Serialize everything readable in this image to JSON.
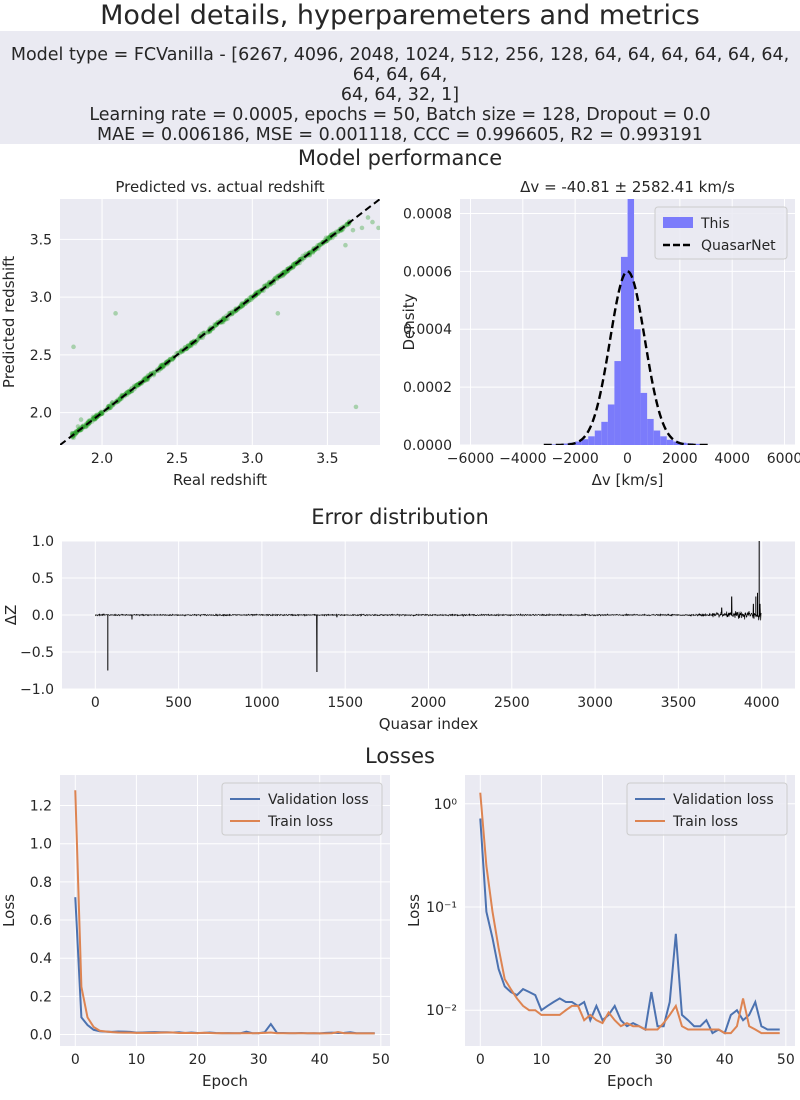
{
  "title": "Model details, hyperparemeters and metrics",
  "info": {
    "line1": "Model type = FCVanilla - [6267, 4096, 2048, 1024, 512, 256, 128, 64, 64, 64, 64, 64, 64, 64, 64, 64,",
    "line2": "64, 64, 32, 1]",
    "line3": "Learning rate = 0.0005, epochs = 50, Batch size = 128, Dropout = 0.0",
    "line4": "MAE = 0.006186, MSE = 0.001118, CCC = 0.996605, R2 = 0.993191"
  },
  "sections": {
    "performance": "Model performance",
    "error": "Error distribution",
    "losses": "Losses"
  },
  "colors": {
    "axes_bg": "#eaeaf2",
    "grid": "#ffffff",
    "scatter": "#2ca02c",
    "hist": "#7b7bfb",
    "validation": "#4c72b0",
    "train": "#dd8452"
  },
  "chart_data": [
    {
      "id": "pred_vs_actual",
      "type": "scatter",
      "title": "Predicted vs. actual redshift",
      "xlabel": "Real redshift",
      "ylabel": "Predicted redshift",
      "xlim": [
        1.72,
        3.85
      ],
      "ylim": [
        1.72,
        3.85
      ],
      "xticks": [
        2.0,
        2.5,
        3.0,
        3.5
      ],
      "yticks": [
        2.0,
        2.5,
        3.0,
        3.5
      ],
      "tick_labels_x": [
        "2.0",
        "2.5",
        "3.0",
        "3.5"
      ],
      "tick_labels_y": [
        "2.0",
        "2.5",
        "3.0",
        "3.5"
      ],
      "reference_line": "y = x (dashed)",
      "outliers": [
        [
          1.81,
          2.57
        ],
        [
          2.09,
          2.86
        ],
        [
          3.17,
          2.86
        ],
        [
          3.69,
          2.05
        ],
        [
          3.55,
          3.55
        ],
        [
          3.62,
          3.45
        ],
        [
          3.67,
          3.58
        ],
        [
          3.73,
          3.6
        ],
        [
          3.77,
          3.69
        ],
        [
          3.8,
          3.65
        ],
        [
          3.84,
          3.6
        ],
        [
          1.84,
          1.88
        ],
        [
          1.86,
          1.94
        ]
      ]
    },
    {
      "id": "delta_v_hist",
      "type": "bar",
      "title": "Δv = -40.81 ± 2582.41 km/s",
      "xlabel": "Δv [km/s]",
      "ylabel": "Density",
      "xlim": [
        -6400,
        6400
      ],
      "ylim": [
        0,
        0.00085
      ],
      "xticks": [
        -6000,
        -4000,
        -2000,
        0,
        2000,
        4000,
        6000
      ],
      "yticks": [
        0.0,
        0.0002,
        0.0004,
        0.0006,
        0.0008
      ],
      "tick_labels_x": [
        "−6000",
        "−4000",
        "−2000",
        "0",
        "2000",
        "4000",
        "6000"
      ],
      "tick_labels_y": [
        "0.0000",
        "0.0002",
        "0.0004",
        "0.0006",
        "0.0008"
      ],
      "legend": [
        "This",
        "QuasarNet"
      ],
      "legend_position": "top-right",
      "bin_edges": [
        -3000,
        -2750,
        -2500,
        -2250,
        -2000,
        -1750,
        -1500,
        -1250,
        -1000,
        -750,
        -500,
        -250,
        0,
        250,
        500,
        750,
        1000,
        1250,
        1500,
        1750,
        2000,
        2250,
        2500,
        2750,
        3000
      ],
      "densities": [
        2e-06,
        3e-06,
        5e-06,
        8e-06,
        1.2e-05,
        2e-05,
        3e-05,
        5e-05,
        8e-05,
        0.00014,
        0.00029,
        0.00065,
        0.00085,
        0.0004,
        0.00018,
        9e-05,
        5e-05,
        3e-05,
        1.8e-05,
        1.2e-05,
        8e-06,
        6e-06,
        4e-06,
        3e-06
      ],
      "gaussian": {
        "mean": 0,
        "peak_density": 0.0006,
        "sigma": 665
      }
    },
    {
      "id": "error_distribution",
      "type": "line",
      "xlabel": "Quasar index",
      "ylabel": "ΔZ",
      "xlim": [
        -200,
        4200
      ],
      "ylim": [
        -1.0,
        1.0
      ],
      "xticks": [
        0,
        500,
        1000,
        1500,
        2000,
        2500,
        3000,
        3500,
        4000
      ],
      "yticks": [
        -1.0,
        -0.5,
        0.0,
        0.5,
        1.0
      ],
      "tick_labels_x": [
        "0",
        "500",
        "1000",
        "1500",
        "2000",
        "2500",
        "3000",
        "3500",
        "4000"
      ],
      "tick_labels_y": [
        "−1.0",
        "−0.5",
        "0.0",
        "0.5",
        "1.0"
      ],
      "n_points": 4000,
      "spikes": [
        [
          75,
          -0.75
        ],
        [
          220,
          -0.06
        ],
        [
          1330,
          -0.77
        ],
        [
          1450,
          -0.03
        ],
        [
          3760,
          0.1
        ],
        [
          3820,
          0.25
        ],
        [
          3950,
          0.15
        ],
        [
          3965,
          0.25
        ],
        [
          3975,
          0.3
        ],
        [
          3985,
          1.0
        ],
        [
          3990,
          0.15
        ]
      ]
    },
    {
      "id": "loss_linear",
      "type": "line",
      "xlabel": "Epoch",
      "ylabel": "Loss",
      "xlim": [
        -2.5,
        51.5
      ],
      "ylim": [
        -0.06,
        1.36
      ],
      "xticks": [
        0,
        10,
        20,
        30,
        40,
        50
      ],
      "yticks": [
        0.0,
        0.2,
        0.4,
        0.6,
        0.8,
        1.0,
        1.2
      ],
      "tick_labels_x": [
        "0",
        "10",
        "20",
        "30",
        "40",
        "50"
      ],
      "tick_labels_y": [
        "0.0",
        "0.2",
        "0.4",
        "0.6",
        "0.8",
        "1.0",
        "1.2"
      ],
      "legend": [
        "Validation loss",
        "Train loss"
      ],
      "legend_position": "top-right"
    },
    {
      "id": "loss_log",
      "type": "line",
      "xlabel": "Epoch",
      "ylabel": "Loss",
      "log_y": true,
      "xlim": [
        -2.5,
        51.5
      ],
      "ylim": [
        0.0045,
        1.9
      ],
      "xticks": [
        0,
        10,
        20,
        30,
        40,
        50
      ],
      "yticks": [
        0.01,
        0.1,
        1
      ],
      "tick_labels_x": [
        "0",
        "10",
        "20",
        "30",
        "40",
        "50"
      ],
      "tick_labels_y": [
        "10⁻²",
        "10⁻¹",
        "10⁰"
      ],
      "legend": [
        "Validation loss",
        "Train loss"
      ],
      "legend_position": "top-right"
    }
  ],
  "losses": {
    "epochs": [
      0,
      1,
      2,
      3,
      4,
      5,
      6,
      7,
      8,
      9,
      10,
      11,
      12,
      13,
      14,
      15,
      16,
      17,
      18,
      19,
      20,
      21,
      22,
      23,
      24,
      25,
      26,
      27,
      28,
      29,
      30,
      31,
      32,
      33,
      34,
      35,
      36,
      37,
      38,
      39,
      40,
      41,
      42,
      43,
      44,
      45,
      46,
      47,
      48,
      49
    ],
    "validation": [
      0.72,
      0.09,
      0.05,
      0.025,
      0.017,
      0.015,
      0.014,
      0.016,
      0.015,
      0.014,
      0.01,
      0.011,
      0.012,
      0.013,
      0.012,
      0.012,
      0.011,
      0.012,
      0.008,
      0.011,
      0.008,
      0.009,
      0.011,
      0.008,
      0.007,
      0.0075,
      0.007,
      0.0065,
      0.015,
      0.007,
      0.007,
      0.012,
      0.055,
      0.009,
      0.008,
      0.007,
      0.007,
      0.008,
      0.006,
      0.0065,
      0.006,
      0.009,
      0.01,
      0.008,
      0.009,
      0.012,
      0.007,
      0.0065,
      0.0065,
      0.0065
    ],
    "train": [
      1.28,
      0.25,
      0.09,
      0.04,
      0.02,
      0.016,
      0.013,
      0.011,
      0.01,
      0.01,
      0.009,
      0.009,
      0.009,
      0.009,
      0.01,
      0.011,
      0.011,
      0.008,
      0.009,
      0.008,
      0.0075,
      0.0095,
      0.008,
      0.007,
      0.0075,
      0.007,
      0.007,
      0.0065,
      0.0065,
      0.0065,
      0.0075,
      0.009,
      0.011,
      0.007,
      0.0065,
      0.0065,
      0.0065,
      0.0065,
      0.0065,
      0.0065,
      0.006,
      0.006,
      0.007,
      0.013,
      0.007,
      0.0065,
      0.006,
      0.006,
      0.006,
      0.006
    ]
  }
}
